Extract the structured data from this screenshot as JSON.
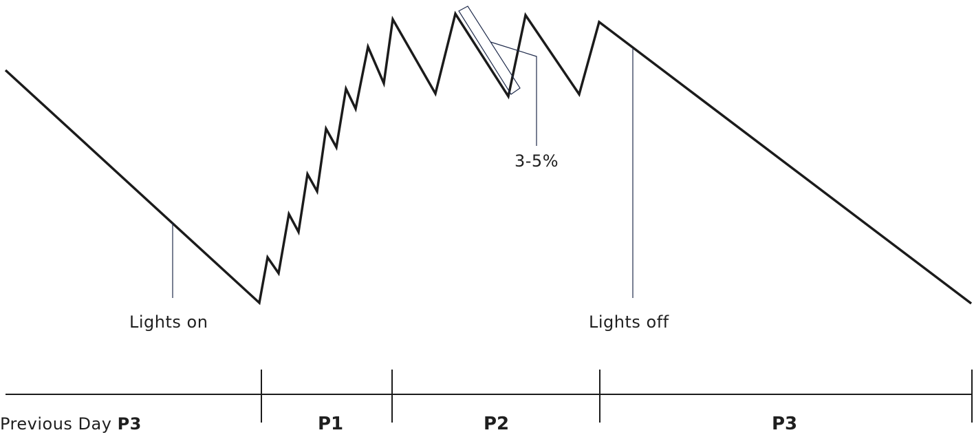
{
  "annotations": {
    "lights_on": "Lights on",
    "lights_off": "Lights off",
    "dryback_range": "3-5%"
  },
  "timeline": {
    "previous_day_prefix": "Previous Day ",
    "previous_day_phase": "P3",
    "phases": [
      "P1",
      "P2",
      "P3"
    ]
  },
  "colors": {
    "line": "#1b1b1b",
    "callout": "#1e2a4a",
    "background": "#ffffff"
  }
}
